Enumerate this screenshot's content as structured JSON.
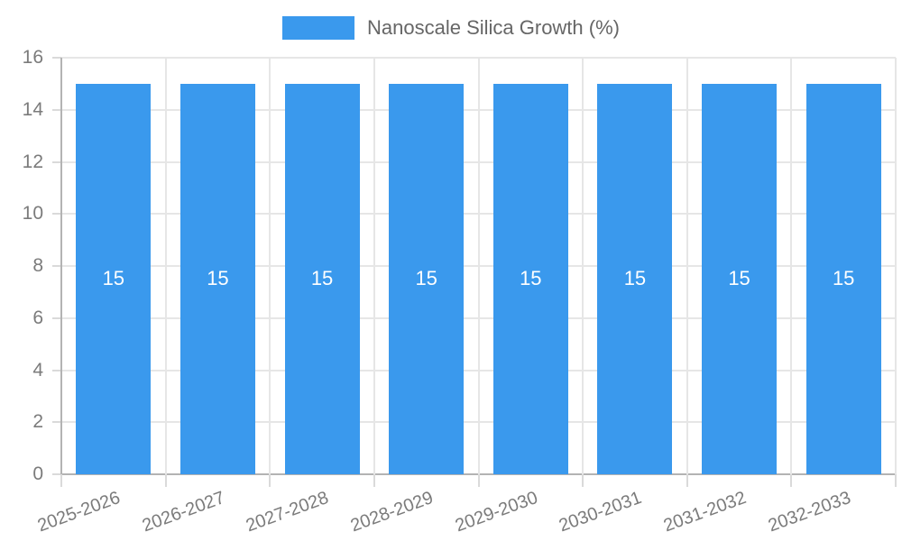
{
  "legend": {
    "label": "Nanoscale Silica Growth (%)"
  },
  "chart_data": {
    "type": "bar",
    "title": "Nanoscale Silica Growth (%)",
    "categories": [
      "2025-2026",
      "2026-2027",
      "2027-2028",
      "2028-2029",
      "2029-2030",
      "2030-2031",
      "2031-2032",
      "2032-2033"
    ],
    "values": [
      15,
      15,
      15,
      15,
      15,
      15,
      15,
      15
    ],
    "bar_labels": [
      "15",
      "15",
      "15",
      "15",
      "15",
      "15",
      "15",
      "15"
    ],
    "xlabel": "",
    "ylabel": "",
    "ylim": [
      0,
      16
    ],
    "yticks": [
      0,
      2,
      4,
      6,
      8,
      10,
      12,
      14,
      16
    ],
    "grid": true,
    "legend_position": "top",
    "colors": {
      "bar": "#3a99ed",
      "bar_value_text": "#ffffff",
      "grid_line": "#e6e6e6",
      "axis_line": "#b3b3b3",
      "tick_mark": "#dadada",
      "tick_label": "#7b7b7b",
      "legend_text": "#666666",
      "background": "#ffffff"
    }
  }
}
